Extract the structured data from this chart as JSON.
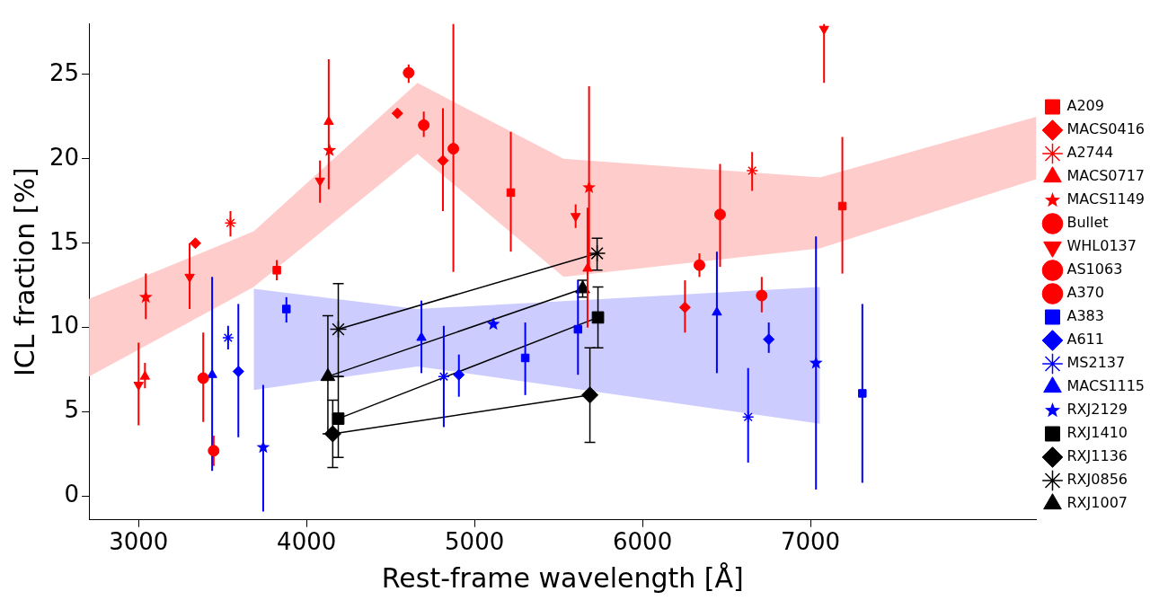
{
  "chart_data": {
    "type": "scatter",
    "xlabel": "Rest-frame wavelength [Å]",
    "ylabel": "ICL fraction [%]",
    "xlim": [
      2705,
      8345
    ],
    "xticks": [
      3000,
      4000,
      5000,
      6000,
      7000
    ],
    "ylim": [
      -1.4,
      28
    ],
    "yticks": [
      0,
      5,
      10,
      15,
      20,
      25
    ],
    "grid": false,
    "legend": "right",
    "series": [
      {
        "type": "area",
        "color": "#ffcccc",
        "x": [
          2705,
          3685,
          4660,
          5530,
          7057,
          8345
        ],
        "values": [
          null,
          null,
          null,
          null,
          null,
          null
        ],
        "lower": [
          7.1,
          12.4,
          20.3,
          13.0,
          14.7,
          18.8
        ],
        "upper": [
          11.7,
          15.7,
          24.5,
          20.0,
          18.9,
          22.5
        ]
      },
      {
        "type": "area",
        "color": "#ccccff",
        "x": [
          3685,
          4660,
          7057
        ],
        "values": [
          null,
          null,
          null
        ],
        "lower": [
          6.3,
          7.7,
          4.3
        ],
        "upper": [
          12.3,
          11.1,
          12.4
        ]
      },
      {
        "name": "A209",
        "color": "#ff0000",
        "marker": "square",
        "x": [
          3823,
          5216,
          7190
        ],
        "values": [
          13.4,
          18.0,
          17.2
        ],
        "errors": [
          [
            12.8,
            14.0
          ],
          [
            14.5,
            21.6
          ],
          [
            13.2,
            21.3
          ]
        ]
      },
      {
        "name": "MACS0416",
        "color": "#ff0000",
        "marker": "diamond",
        "x": [
          3338,
          4541,
          4812,
          6253
        ],
        "values": [
          15.0,
          22.7,
          19.9,
          11.2
        ],
        "errors": [
          null,
          null,
          [
            16.9,
            23.0
          ],
          [
            9.7,
            12.8
          ]
        ]
      },
      {
        "name": "A2744",
        "color": "#ff0000",
        "marker": "cross",
        "x": [
          3547,
          6653
        ],
        "values": [
          16.2,
          19.3
        ],
        "errors": [
          [
            15.4,
            16.9
          ],
          [
            18.1,
            20.4
          ]
        ]
      },
      {
        "name": "MACS0717",
        "color": "#ff0000",
        "marker": "triangle",
        "x": [
          3038,
          4132,
          5673
        ],
        "values": [
          7.1,
          22.2,
          13.5
        ],
        "errors": [
          [
            6.4,
            7.9
          ],
          [
            18.2,
            25.9
          ],
          [
            10.0,
            17.1
          ]
        ]
      },
      {
        "name": "MACS1149",
        "color": "#ff0000",
        "marker": "star",
        "x": [
          3043,
          4137,
          5682
        ],
        "values": [
          11.8,
          20.5,
          18.3
        ],
        "errors": [
          [
            10.5,
            13.2
          ],
          null,
          [
            13.5,
            24.3
          ]
        ]
      },
      {
        "name": "Bullet",
        "color": "#ff0000",
        "marker": "circle",
        "x": [
          4874,
          6710
        ],
        "values": [
          20.6,
          11.9
        ],
        "errors": [
          [
            13.3,
            28
          ],
          [
            10.9,
            13.0
          ]
        ]
      },
      {
        "name": "WHL0137",
        "color": "#ff0000",
        "marker": "triangle-down",
        "x": [
          3000,
          3304,
          4080,
          5602,
          7081
        ],
        "values": [
          6.6,
          13.0,
          18.7,
          16.6,
          27.7
        ],
        "errors": [
          [
            4.2,
            9.1
          ],
          [
            11.1,
            15.0
          ],
          [
            17.4,
            19.9
          ],
          [
            15.9,
            17.3
          ],
          [
            24.5,
            28
          ]
        ]
      },
      {
        "name": "AS1063",
        "color": "#ff0000",
        "marker": "circle",
        "x": [
          3447,
          4698,
          6462
        ],
        "values": [
          2.7,
          22.0,
          16.7
        ],
        "errors": [
          [
            1.8,
            3.6
          ],
          [
            21.3,
            22.8
          ],
          [
            13.6,
            19.7
          ]
        ]
      },
      {
        "name": "A370",
        "color": "#ff0000",
        "marker": "circle",
        "x": [
          3385,
          4608,
          6339
        ],
        "values": [
          7.0,
          25.1,
          13.7
        ],
        "errors": [
          [
            4.4,
            9.7
          ],
          [
            24.5,
            25.6
          ],
          [
            13.0,
            14.4
          ]
        ]
      },
      {
        "name": "A383",
        "color": "#0000ff",
        "marker": "square",
        "x": [
          3880,
          5302,
          5616,
          7309
        ],
        "values": [
          11.1,
          8.2,
          9.9,
          6.1
        ],
        "errors": [
          [
            10.3,
            11.8
          ],
          [
            6.0,
            10.3
          ],
          [
            7.2,
            12.8
          ],
          [
            0.8,
            11.4
          ]
        ]
      },
      {
        "name": "A611",
        "color": "#0000ff",
        "marker": "diamond",
        "x": [
          3594,
          4907,
          6752
        ],
        "values": [
          7.4,
          7.2,
          9.3
        ],
        "errors": [
          [
            3.5,
            11.4
          ],
          [
            5.9,
            8.4
          ],
          [
            8.5,
            10.3
          ]
        ]
      },
      {
        "name": "MS2137",
        "color": "#0000ff",
        "marker": "cross",
        "x": [
          3533,
          4817,
          6629
        ],
        "values": [
          9.4,
          7.1,
          4.7
        ],
        "errors": [
          [
            8.7,
            10.1
          ],
          [
            4.1,
            10.1
          ],
          [
            2.0,
            7.6
          ]
        ]
      },
      {
        "name": "MACS1115",
        "color": "#0000ff",
        "marker": "triangle",
        "x": [
          3438,
          4684,
          6443
        ],
        "values": [
          7.2,
          9.4,
          10.9
        ],
        "errors": [
          [
            1.5,
            13.0
          ],
          [
            7.3,
            11.6
          ],
          [
            7.3,
            14.5
          ]
        ]
      },
      {
        "name": "RXJ2129",
        "color": "#0000ff",
        "marker": "star",
        "x": [
          3742,
          5112,
          7033
        ],
        "values": [
          2.9,
          10.2,
          7.9
        ],
        "errors": [
          [
            -0.9,
            6.6
          ],
          null,
          [
            0.4,
            15.4
          ]
        ]
      },
      {
        "name": "RXJ1410",
        "type": "line",
        "color": "#000000",
        "marker": "square",
        "x": [
          4189,
          5735
        ],
        "values": [
          4.6,
          10.6
        ],
        "errors": [
          [
            2.3,
            7.1
          ],
          [
            8.8,
            12.4
          ]
        ]
      },
      {
        "name": "RXJ1136",
        "type": "line",
        "color": "#000000",
        "marker": "diamond",
        "x": [
          4156,
          5687
        ],
        "values": [
          3.7,
          6.0
        ],
        "errors": [
          [
            1.7,
            5.7
          ],
          [
            3.2,
            8.8
          ]
        ]
      },
      {
        "name": "RXJ0856",
        "type": "line",
        "color": "#000000",
        "marker": "cross",
        "x": [
          4189,
          5730
        ],
        "values": [
          9.9,
          14.4
        ],
        "errors": [
          [
            7.1,
            12.6
          ],
          [
            13.4,
            15.3
          ]
        ]
      },
      {
        "name": "RXJ1007",
        "type": "line",
        "color": "#000000",
        "marker": "triangle",
        "x": [
          4127,
          5644
        ],
        "values": [
          7.1,
          12.3
        ],
        "errors": [
          [
            3.7,
            10.7
          ],
          [
            11.8,
            12.8
          ]
        ]
      }
    ]
  }
}
